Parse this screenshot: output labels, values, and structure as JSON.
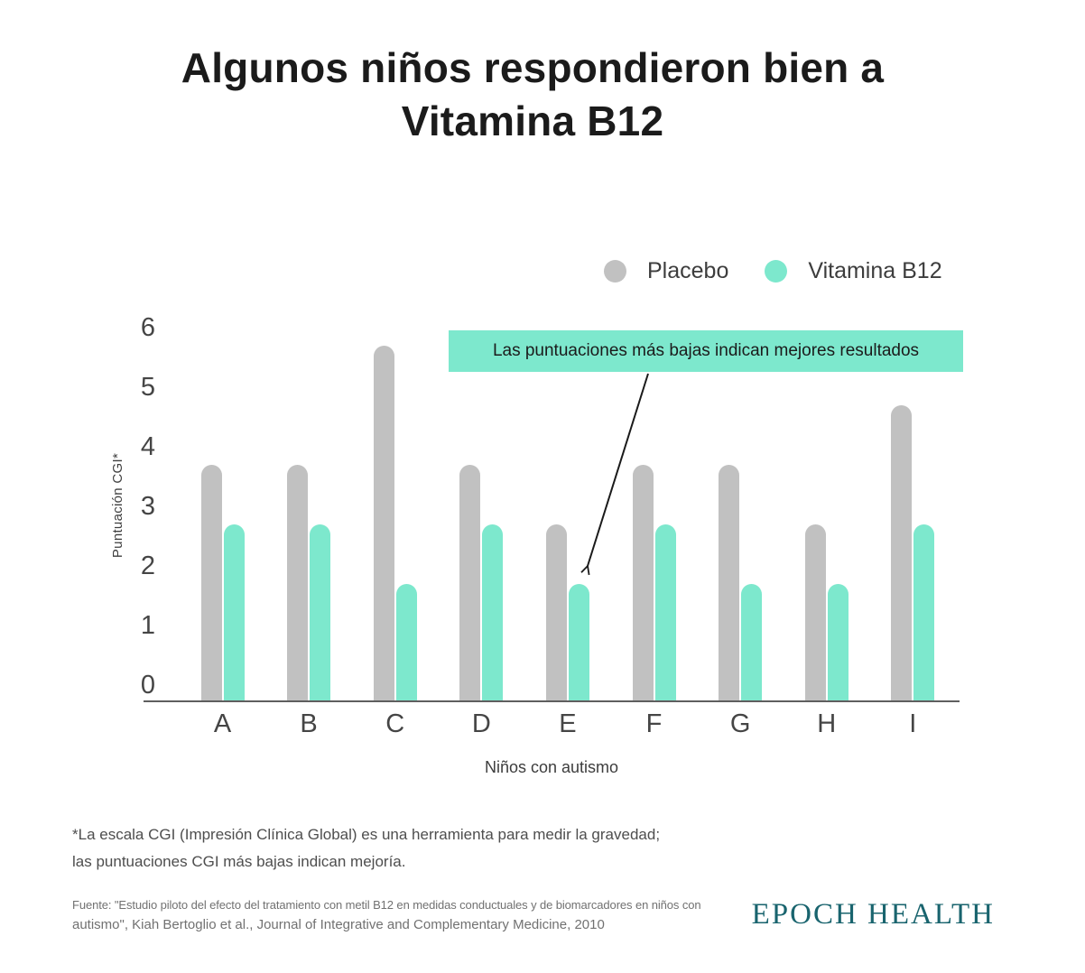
{
  "title": {
    "line1": "Algunos niños respondieron bien a",
    "line2": "Vitamina B12"
  },
  "legend": [
    {
      "label": "Placebo",
      "color": "#c1c1c1"
    },
    {
      "label": "Vitamina B12",
      "color": "#7de8cd"
    }
  ],
  "annotation": {
    "text": "Las puntuaciones más bajas indican mejores resultados",
    "bg": "#7de8cd"
  },
  "chart_data": {
    "type": "bar",
    "title": "Algunos niños respondieron bien a Vitamina B12",
    "categories": [
      "A",
      "B",
      "C",
      "D",
      "E",
      "F",
      "G",
      "H",
      "I"
    ],
    "series": [
      {
        "name": "Placebo",
        "color": "#c1c1c1",
        "values": [
          3.7,
          3.7,
          5.7,
          3.7,
          2.7,
          3.7,
          3.7,
          2.7,
          4.7
        ]
      },
      {
        "name": "Vitamina B12",
        "color": "#7de8cd",
        "values": [
          2.7,
          2.7,
          1.7,
          2.7,
          1.7,
          2.7,
          1.7,
          1.7,
          2.7
        ]
      }
    ],
    "xlabel": "Niños con autismo",
    "ylabel": "Puntuación CGI*",
    "ylim": [
      0,
      6
    ],
    "yticks": [
      0,
      1,
      2,
      3,
      4,
      5,
      6
    ],
    "grid": false,
    "legend_position": "top-right",
    "annotation": "Las puntuaciones más bajas indican mejores resultados"
  },
  "axis": {
    "ylabel": "Puntuación CGI*",
    "xlabel": "Niños con autismo"
  },
  "footnote": {
    "line1": "*La escala CGI (Impresión Clínica Global) es una herramienta para medir la gravedad;",
    "line2": "las puntuaciones CGI más bajas indican mejoría."
  },
  "source": {
    "line1": "Fuente: \"Estudio piloto del efecto del tratamiento con metil B12 en medidas conductuales y de biomarcadores en niños con",
    "line2": "autismo\", Kiah Bertoglio et al., Journal of Integrative and Complementary Medicine, 2010"
  },
  "logo": "EPOCH HEALTH"
}
